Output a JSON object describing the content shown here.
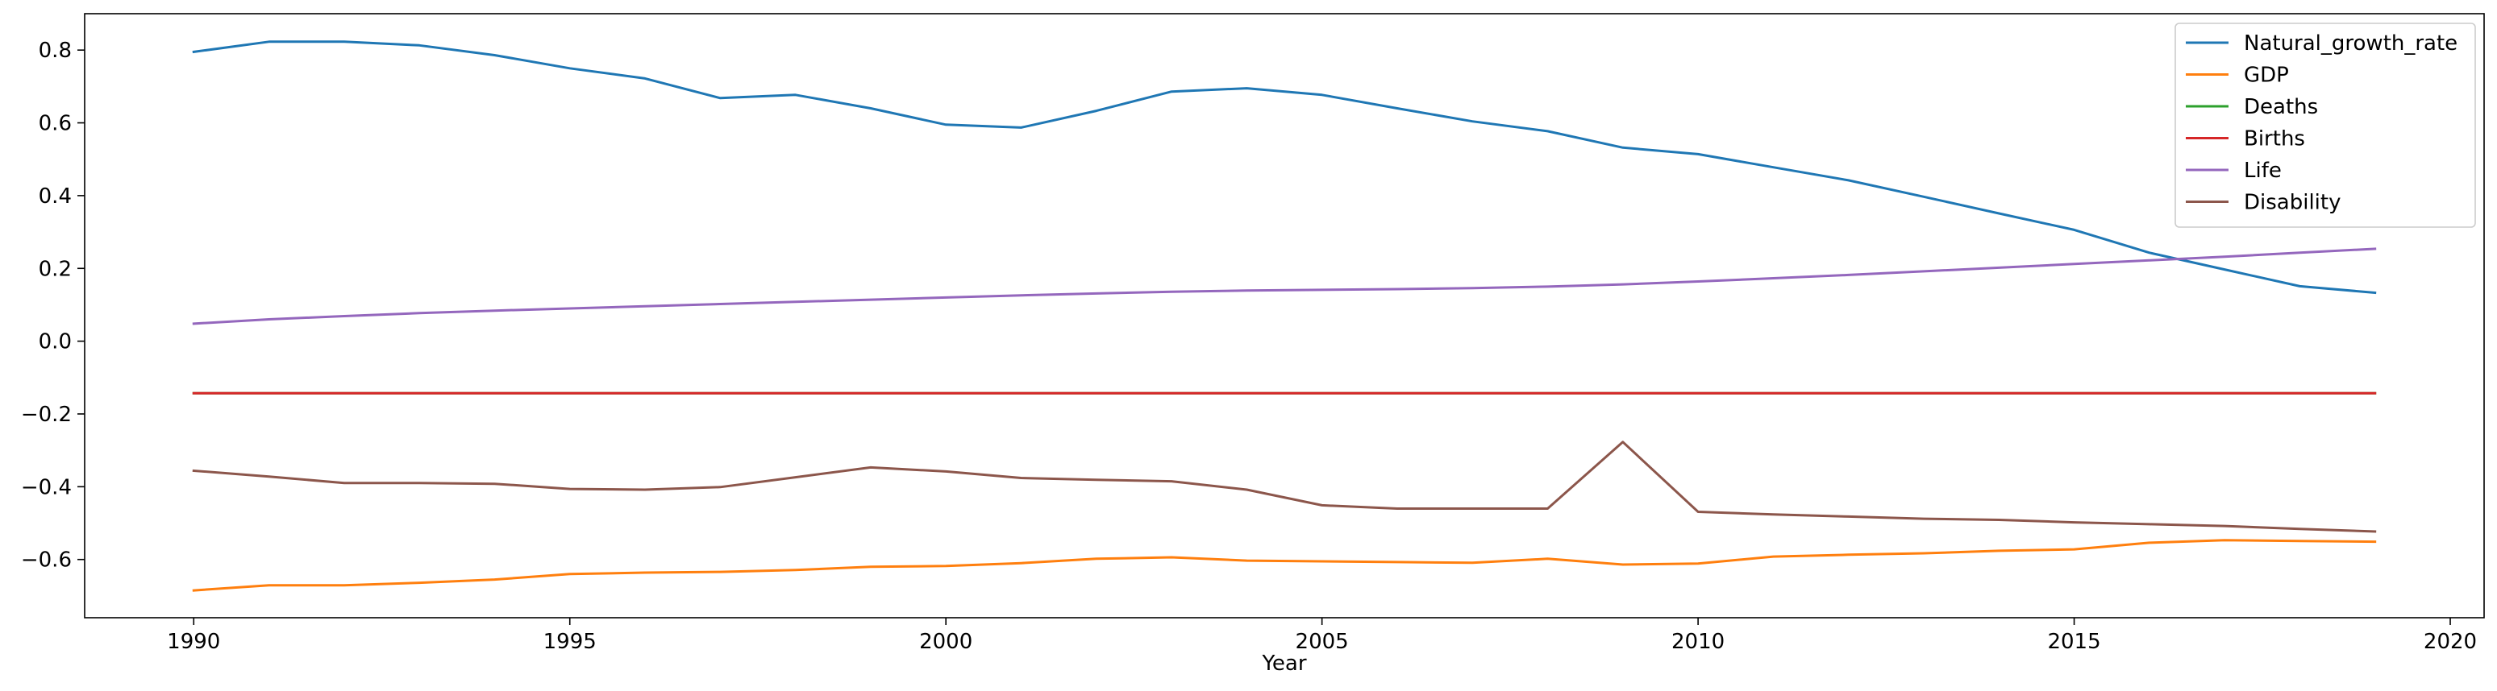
{
  "chart_data": {
    "type": "line",
    "title": "",
    "xlabel": "Year",
    "ylabel": "",
    "xlim": [
      1988.55,
      2020.45
    ],
    "ylim": [
      -0.76,
      0.9
    ],
    "x_ticks": [
      1990,
      1995,
      2000,
      2005,
      2010,
      2015,
      2020
    ],
    "x_tick_labels": [
      "1990",
      "1995",
      "2000",
      "2005",
      "2010",
      "2015",
      "2020"
    ],
    "y_ticks": [
      -0.6,
      -0.4,
      -0.2,
      0.0,
      0.2,
      0.4,
      0.6,
      0.8
    ],
    "y_tick_labels": [
      "−0.6",
      "−0.4",
      "−0.2",
      "0.0",
      "0.2",
      "0.4",
      "0.6",
      "0.8"
    ],
    "grid": false,
    "legend_position": "top-right",
    "x": [
      1990,
      1991,
      1992,
      1993,
      1994,
      1995,
      1996,
      1997,
      1998,
      1999,
      2000,
      2001,
      2002,
      2003,
      2004,
      2005,
      2006,
      2007,
      2008,
      2009,
      2010,
      2011,
      2012,
      2013,
      2014,
      2015,
      2016,
      2017,
      2018,
      2019
    ],
    "series": [
      {
        "name": "Natural_growth_rate",
        "color": "#1f77b4",
        "values": [
          0.795,
          0.823,
          0.823,
          0.813,
          0.786,
          0.75,
          0.722,
          0.668,
          0.677,
          0.64,
          0.595,
          0.587,
          0.633,
          0.686,
          0.695,
          0.677,
          0.64,
          0.604,
          0.577,
          0.532,
          0.514,
          0.478,
          0.442,
          0.397,
          0.351,
          0.306,
          0.243,
          0.197,
          0.151,
          0.133
        ]
      },
      {
        "name": "GDP",
        "color": "#ff7f0e",
        "values": [
          -0.685,
          -0.671,
          -0.671,
          -0.664,
          -0.655,
          -0.64,
          -0.636,
          -0.634,
          -0.629,
          -0.62,
          -0.618,
          -0.61,
          -0.598,
          -0.594,
          -0.603,
          -0.605,
          -0.607,
          -0.609,
          -0.598,
          -0.614,
          -0.611,
          -0.592,
          -0.587,
          -0.583,
          -0.576,
          -0.572,
          -0.554,
          -0.547,
          -0.549,
          -0.551
        ]
      },
      {
        "name": "Deaths",
        "color": "#2ca02c",
        "values": [
          -0.143,
          -0.143,
          -0.143,
          -0.143,
          -0.143,
          -0.143,
          -0.143,
          -0.143,
          -0.143,
          -0.143,
          -0.143,
          -0.143,
          -0.143,
          -0.143,
          -0.143,
          -0.143,
          -0.143,
          -0.143,
          -0.143,
          -0.143,
          -0.143,
          -0.143,
          -0.143,
          -0.143,
          -0.143,
          -0.143,
          -0.143,
          -0.143,
          -0.143,
          -0.143
        ]
      },
      {
        "name": "Births",
        "color": "#d62728",
        "values": [
          -0.143,
          -0.143,
          -0.143,
          -0.143,
          -0.143,
          -0.143,
          -0.143,
          -0.143,
          -0.143,
          -0.143,
          -0.143,
          -0.143,
          -0.143,
          -0.143,
          -0.143,
          -0.143,
          -0.143,
          -0.143,
          -0.143,
          -0.143,
          -0.143,
          -0.143,
          -0.143,
          -0.143,
          -0.143,
          -0.143,
          -0.143,
          -0.143,
          -0.143,
          -0.143
        ]
      },
      {
        "name": "Life",
        "color": "#9467bd",
        "values": [
          0.048,
          0.06,
          0.069,
          0.077,
          0.084,
          0.09,
          0.096,
          0.102,
          0.108,
          0.114,
          0.12,
          0.126,
          0.131,
          0.136,
          0.139,
          0.141,
          0.143,
          0.146,
          0.15,
          0.156,
          0.164,
          0.173,
          0.182,
          0.192,
          0.202,
          0.212,
          0.222,
          0.232,
          0.243,
          0.254
        ]
      },
      {
        "name": "Disability",
        "color": "#8c564b",
        "values": [
          -0.356,
          -0.372,
          -0.39,
          -0.39,
          -0.392,
          -0.406,
          -0.408,
          -0.401,
          -0.374,
          -0.347,
          -0.358,
          -0.376,
          -0.381,
          -0.385,
          -0.408,
          -0.451,
          -0.46,
          -0.46,
          -0.46,
          -0.277,
          -0.469,
          -0.476,
          -0.482,
          -0.488,
          -0.491,
          -0.498,
          -0.503,
          -0.508,
          -0.516,
          -0.523
        ]
      }
    ]
  }
}
